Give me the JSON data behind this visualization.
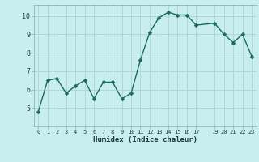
{
  "x": [
    0,
    1,
    2,
    3,
    4,
    5,
    6,
    7,
    8,
    9,
    10,
    11,
    12,
    13,
    14,
    15,
    16,
    17,
    19,
    20,
    21,
    22,
    23
  ],
  "y": [
    4.8,
    6.5,
    6.6,
    5.8,
    6.2,
    6.5,
    5.5,
    6.4,
    6.4,
    5.5,
    5.8,
    7.6,
    9.1,
    9.9,
    10.2,
    10.05,
    10.05,
    9.5,
    9.6,
    9.0,
    8.55,
    9.0,
    7.8
  ],
  "line_color": "#1a6b5a",
  "marker_color": "#1a6b5a",
  "bg_color": "#c8eeee",
  "grid_color": "#b0d8d8",
  "xlabel": "Humidex (Indice chaleur)",
  "ylim": [
    4,
    10.6
  ],
  "xlim": [
    -0.5,
    23.5
  ],
  "yticks": [
    5,
    6,
    7,
    8,
    9,
    10
  ],
  "xticks": [
    0,
    1,
    2,
    3,
    4,
    5,
    6,
    7,
    8,
    9,
    10,
    11,
    12,
    13,
    14,
    15,
    16,
    17,
    19,
    20,
    21,
    22,
    23
  ],
  "xtick_labels": [
    "0",
    "1",
    "2",
    "3",
    "4",
    "5",
    "6",
    "7",
    "8",
    "9",
    "10",
    "11",
    "12",
    "13",
    "14",
    "15",
    "16",
    "17",
    "19",
    "20",
    "21",
    "22",
    "23"
  ],
  "linewidth": 1.0,
  "markersize": 2.5
}
